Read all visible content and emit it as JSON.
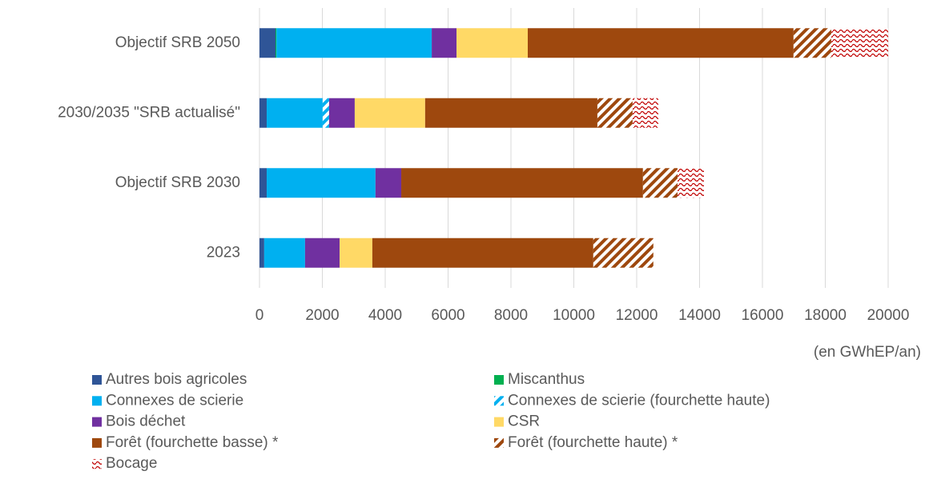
{
  "chart_data": {
    "type": "stacked_barh",
    "categories": [
      "Objectif SRB 2050",
      "2030/2035 \"SRB actualisé\"",
      "Objectif SRB 2030",
      "2023"
    ],
    "series": [
      {
        "name": "Autres bois agricoles",
        "color": "#2f5597",
        "pattern": "solid",
        "values": [
          510,
          230,
          230,
          150
        ]
      },
      {
        "name": "Miscanthus",
        "color": "#00b050",
        "pattern": "solid",
        "values": [
          30,
          0,
          0,
          0
        ]
      },
      {
        "name": "Connexes de scierie",
        "color": "#00b0f0",
        "pattern": "solid",
        "values": [
          4940,
          1780,
          3460,
          1300
        ]
      },
      {
        "name": "Connexes de scierie (fourchette haute)",
        "color": "#00b0f0",
        "pattern": "hatch",
        "values": [
          0,
          205,
          0,
          0
        ]
      },
      {
        "name": "Bois déchet",
        "color": "#7030a0",
        "pattern": "solid",
        "values": [
          790,
          815,
          820,
          1100
        ]
      },
      {
        "name": "CSR",
        "color": "#ffd966",
        "pattern": "solid",
        "values": [
          2265,
          2240,
          0,
          1040
        ]
      },
      {
        "name": "Forêt (fourchette basse) *",
        "color": "#9e480e",
        "pattern": "solid",
        "values": [
          8455,
          5480,
          7690,
          7030
        ]
      },
      {
        "name": "Forêt (fourchette haute) *",
        "color": "#9e480e",
        "pattern": "hatch",
        "values": [
          1200,
          1120,
          1100,
          1910
        ]
      },
      {
        "name": "Bocage",
        "color": "#c00000",
        "pattern": "wave",
        "values": [
          1810,
          820,
          840,
          0
        ]
      }
    ],
    "x_label": "(en GWhEP/an)",
    "xlim": [
      0,
      20000
    ],
    "xticks": [
      0,
      2000,
      4000,
      6000,
      8000,
      10000,
      12000,
      14000,
      16000,
      18000,
      20000
    ],
    "grid": true
  }
}
